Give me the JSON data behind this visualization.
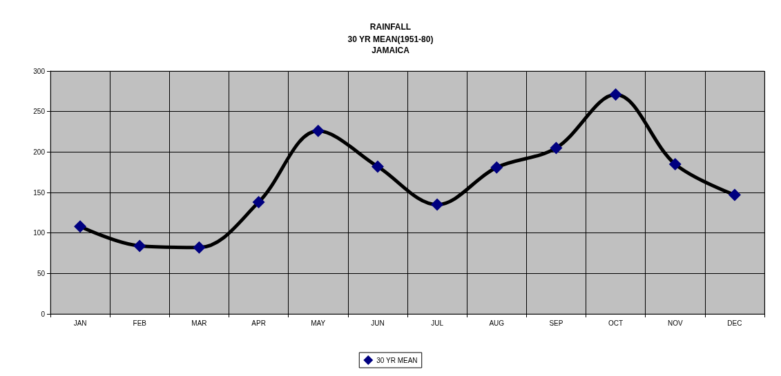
{
  "chart_data": {
    "type": "line",
    "title": "RAINFALL",
    "subtitle": "30 YR MEAN(1951-80)\nJAMAICA",
    "categories": [
      "JAN",
      "FEB",
      "MAR",
      "APR",
      "MAY",
      "JUN",
      "JUL",
      "AUG",
      "SEP",
      "OCT",
      "NOV",
      "DEC"
    ],
    "series": [
      {
        "name": "30 YR MEAN",
        "color": "#000080",
        "values": [
          108,
          84,
          82,
          138,
          226,
          182,
          135,
          181,
          205,
          271,
          185,
          147
        ]
      }
    ],
    "ylim": [
      0,
      300
    ],
    "yticks": [
      0,
      50,
      100,
      150,
      200,
      250,
      300
    ],
    "grid": true,
    "legend": "bottom",
    "marker": "diamond",
    "line_style": "solid"
  }
}
